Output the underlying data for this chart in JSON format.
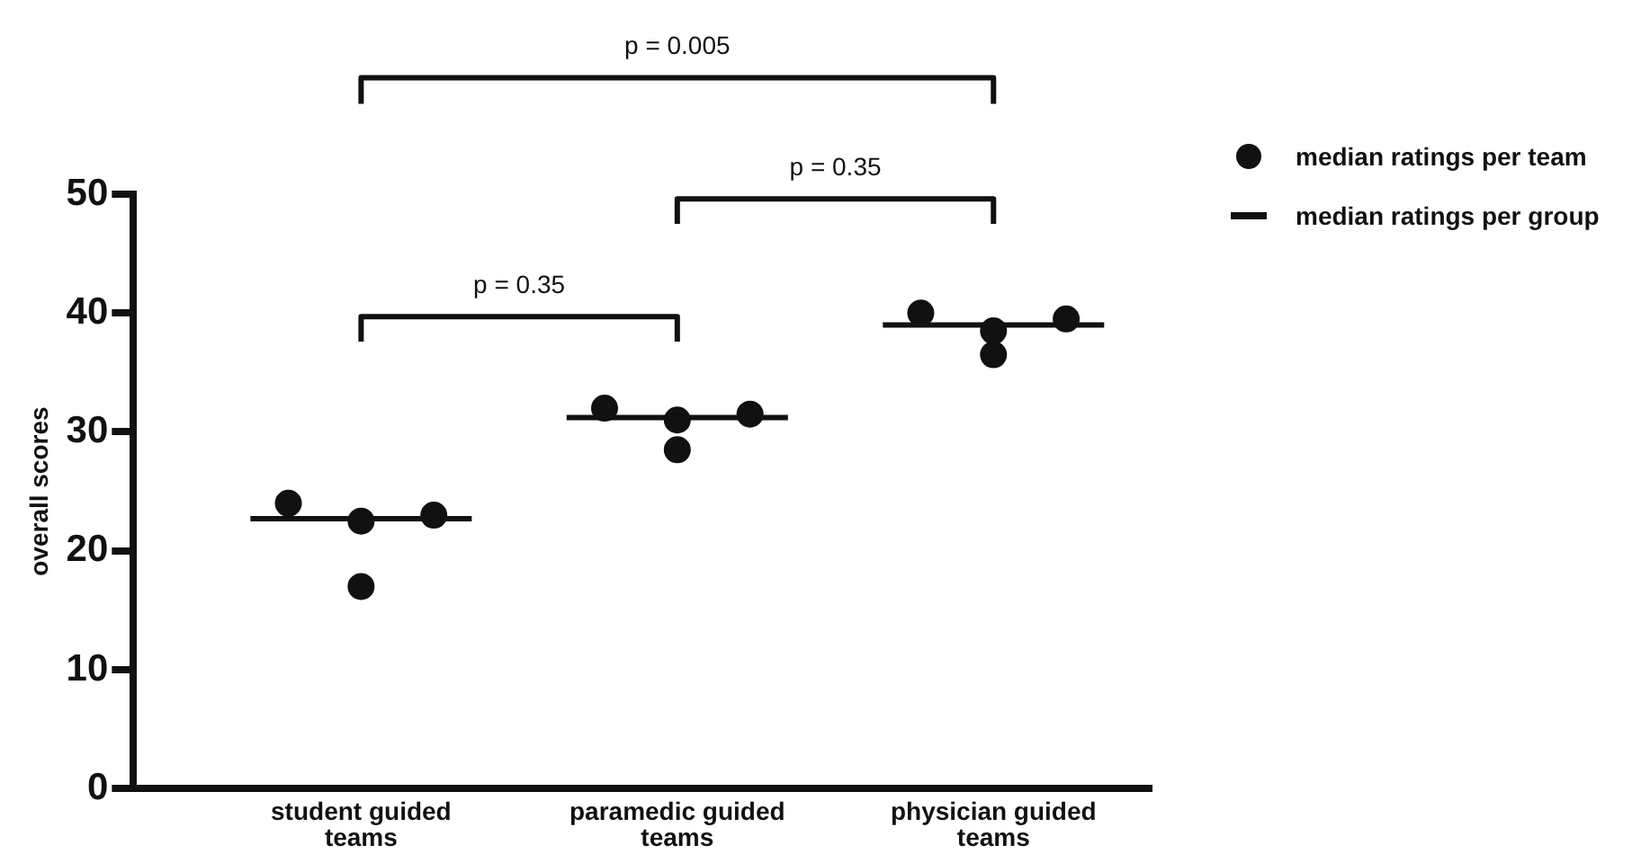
{
  "chart_data": {
    "type": "scatter",
    "ylabel": "overall scores",
    "categories": [
      "student guided teams",
      "paramedic guided teams",
      "physician guided teams"
    ],
    "series": [
      {
        "name": "median ratings per team",
        "marker": "circle",
        "color": "#111111",
        "x": [
          "student guided teams",
          "student guided teams",
          "student guided teams",
          "student guided teams",
          "paramedic guided teams",
          "paramedic guided teams",
          "paramedic guided teams",
          "paramedic guided teams",
          "physician guided teams",
          "physician guided teams",
          "physician guided teams",
          "physician guided teams"
        ],
        "values": [
          24,
          22.5,
          23,
          17,
          32,
          31,
          31.5,
          28.5,
          40,
          38.5,
          39.5,
          36.5
        ]
      },
      {
        "name": "median ratings per group",
        "type": "box",
        "color": "#111111",
        "boxes": [
          {
            "low": 22.7,
            "q1": 22.7,
            "median": 22.7,
            "q3": 22.7,
            "high": 22.7
          },
          {
            "low": 31.2,
            "q1": 31.2,
            "median": 31.2,
            "q3": 31.2,
            "high": 31.2
          },
          {
            "low": 39,
            "q1": 39,
            "median": 39,
            "q3": 39,
            "high": 39
          }
        ]
      }
    ],
    "ylim": [
      0,
      50
    ],
    "yticks": [
      0,
      10,
      20,
      30,
      40,
      50
    ],
    "grid": false,
    "legend": "top right",
    "annotations": [
      "p = 0.35",
      "p = 0.35",
      "p = 0.005"
    ]
  }
}
